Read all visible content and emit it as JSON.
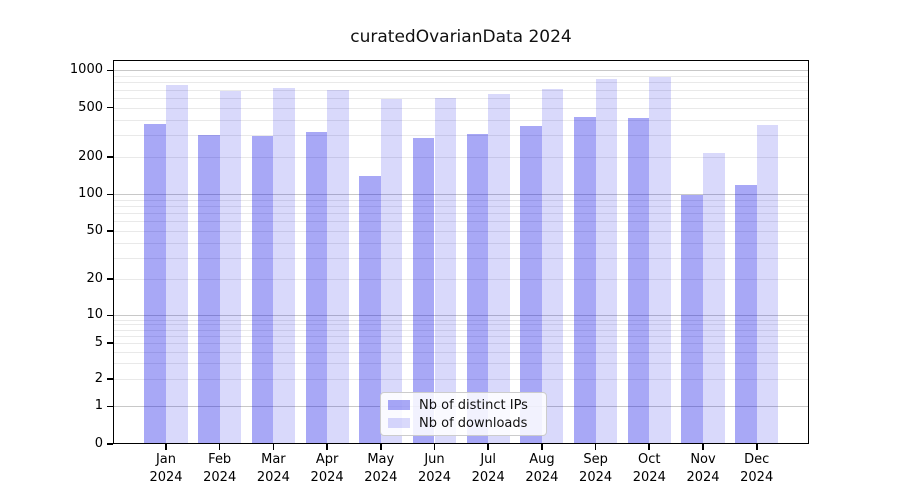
{
  "title": "curatedOvarianData 2024",
  "legend": {
    "items": [
      {
        "label": "Nb of distinct IPs",
        "color": "rgba(0,0,230,0.34)"
      },
      {
        "label": "Nb of downloads",
        "color": "rgba(0,0,230,0.15)"
      }
    ]
  },
  "chart_data": {
    "type": "bar",
    "title": "curatedOvarianData 2024",
    "categories": [
      "Jan 2024",
      "Feb 2024",
      "Mar 2024",
      "Apr 2024",
      "May 2024",
      "Jun 2024",
      "Jul 2024",
      "Aug 2024",
      "Sep 2024",
      "Oct 2024",
      "Nov 2024",
      "Dec 2024"
    ],
    "series": [
      {
        "name": "Nb of distinct IPs",
        "color": "rgba(0,0,230,0.34)",
        "values": [
          370,
          300,
          295,
          320,
          142,
          285,
          305,
          355,
          425,
          415,
          99,
          120
        ]
      },
      {
        "name": "Nb of downloads",
        "color": "rgba(0,0,230,0.15)",
        "values": [
          770,
          685,
          720,
          695,
          590,
          600,
          640,
          710,
          860,
          880,
          215,
          360
        ]
      }
    ],
    "xlabel": "",
    "ylabel": "",
    "yscale": "symlog",
    "yticks": [
      0,
      1,
      2,
      5,
      10,
      20,
      50,
      100,
      200,
      500,
      1000
    ],
    "ylim": [
      0,
      1150
    ],
    "grid": true,
    "grid_major_color": "#c8c8c8",
    "grid_minor_color": "#e9e9e9",
    "legend_position": "lower center"
  }
}
